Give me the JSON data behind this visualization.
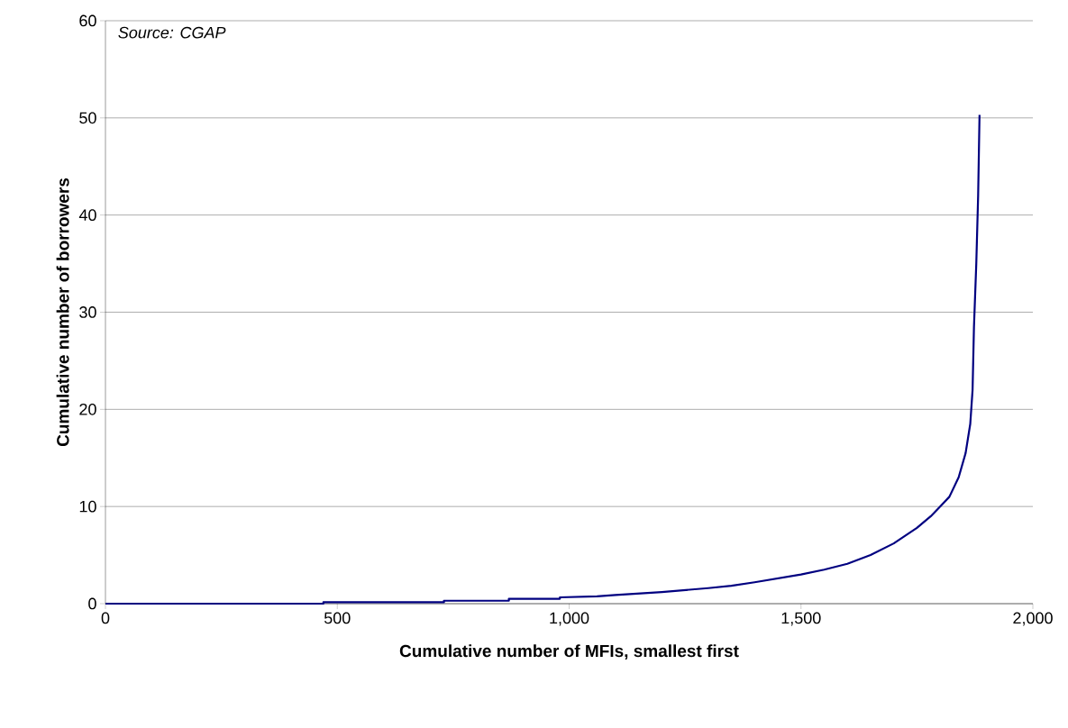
{
  "chart_data": {
    "type": "line",
    "xlabel": "Cumulative number of MFIs, smallest first",
    "ylabel": "Cumulative number of borrowers",
    "annotations": [
      "Source: CGAP"
    ],
    "xlim": [
      0,
      2000
    ],
    "ylim": [
      0,
      60
    ],
    "xticks": [
      0,
      500,
      {
        "value": 1000,
        "label": "1,000"
      },
      {
        "value": 1500,
        "label": "1,500"
      },
      {
        "value": 2000,
        "label": "2,000"
      }
    ],
    "yticks": [
      0,
      10,
      20,
      30,
      40,
      50,
      60
    ],
    "grid": "y",
    "line_style": "solid",
    "series": [
      {
        "color": "#000080",
        "x": [
          0,
          470,
          470,
          730,
          730,
          870,
          870,
          980,
          980,
          1060,
          1100,
          1150,
          1200,
          1250,
          1300,
          1350,
          1400,
          1450,
          1500,
          1550,
          1600,
          1650,
          1700,
          1750,
          1780,
          1800,
          1820,
          1840,
          1855,
          1865,
          1870,
          1873,
          1878,
          1882,
          1885
        ],
        "values": [
          0,
          0,
          0.15,
          0.15,
          0.3,
          0.3,
          0.5,
          0.5,
          0.65,
          0.75,
          0.9,
          1.05,
          1.2,
          1.4,
          1.6,
          1.85,
          2.2,
          2.6,
          3.0,
          3.5,
          4.1,
          5.0,
          6.2,
          7.8,
          9.0,
          10.0,
          11.0,
          13.0,
          15.5,
          18.5,
          22,
          28.5,
          35,
          42,
          50.3
        ]
      }
    ]
  }
}
